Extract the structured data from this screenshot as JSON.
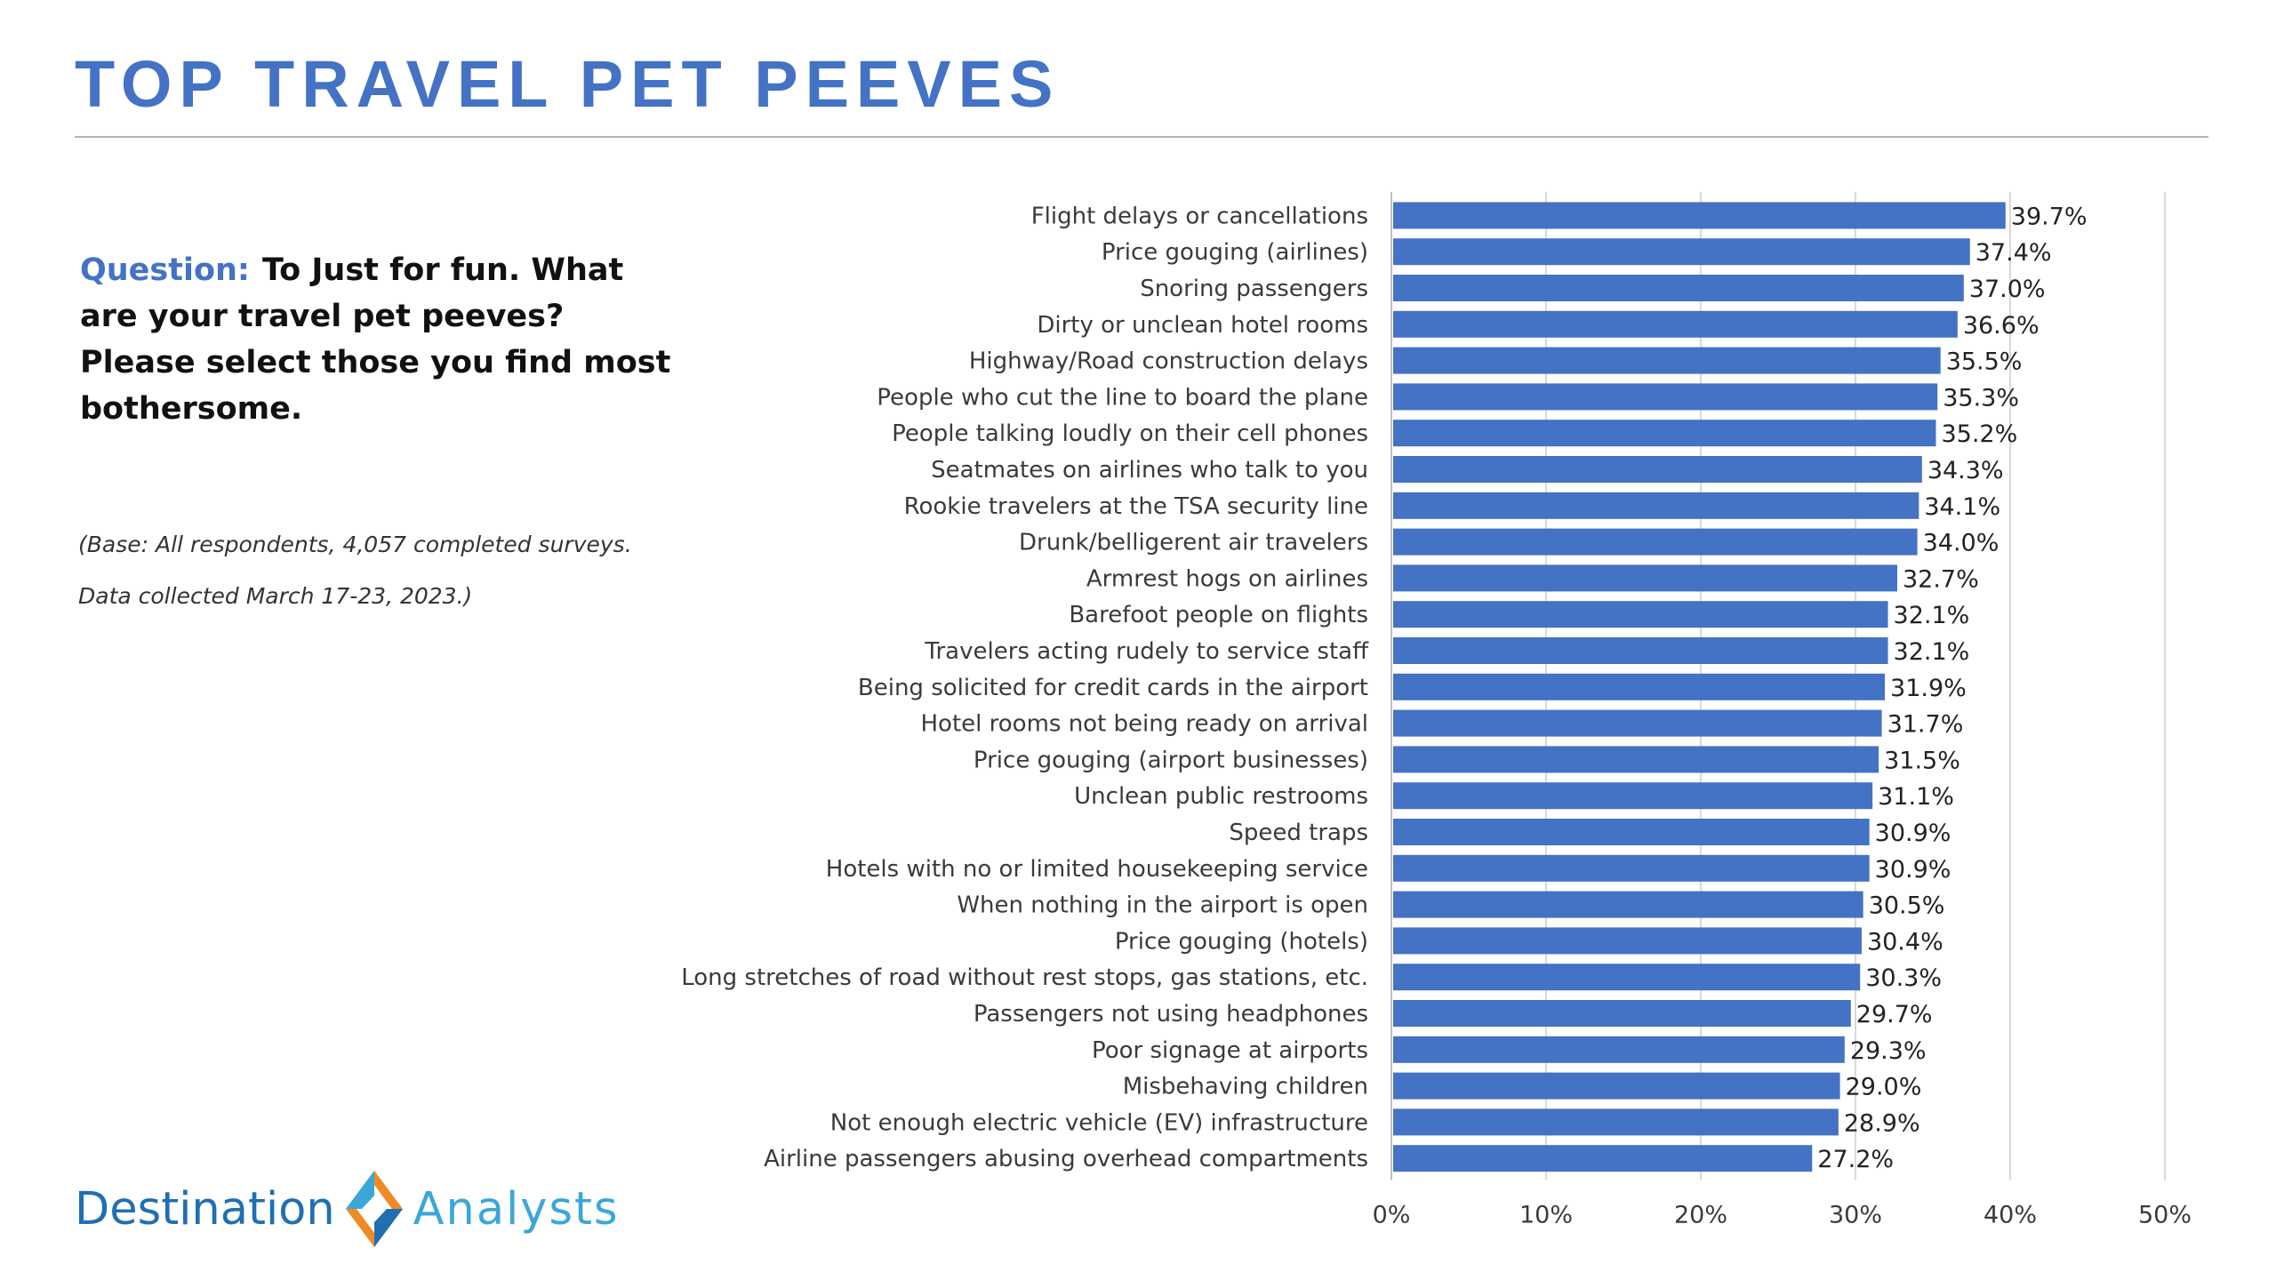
{
  "header": {
    "title": "TOP TRAVEL PET PEEVES"
  },
  "question": {
    "label": "Question:",
    "text": "To Just for fun. What are your travel pet peeves? Please select those you find most bothersome."
  },
  "base_note": {
    "line1": "(Base: All respondents, 4,057 completed surveys.",
    "line2": "Data collected March 17-23, 2023.)"
  },
  "logo": {
    "word1": "Destination",
    "word2": "Analysts",
    "icon": "diamond-arrows-icon"
  },
  "colors": {
    "title": "#4472C4",
    "bar": "#4472C4",
    "gridline": "#d9d9d9"
  },
  "chart_data": {
    "type": "bar",
    "orientation": "horizontal",
    "categories": [
      "Flight delays or cancellations",
      "Price gouging (airlines)",
      "Snoring passengers",
      "Dirty or unclean hotel rooms",
      "Highway/Road construction delays",
      "People who cut the line to board the plane",
      "People talking loudly on their cell phones",
      "Seatmates on airlines who talk to you",
      "Rookie travelers at the TSA security line",
      "Drunk/belligerent air travelers",
      "Armrest hogs on airlines",
      "Barefoot people on flights",
      "Travelers acting rudely to service staff",
      "Being solicited for credit cards in the airport",
      "Hotel rooms not being ready on arrival",
      "Price gouging (airport businesses)",
      "Unclean public restrooms",
      "Speed traps",
      "Hotels with no or limited housekeeping service",
      "When nothing in the airport is open",
      "Price gouging (hotels)",
      "Long stretches of road without rest stops, gas stations, etc.",
      "Passengers not using headphones",
      "Poor signage at airports",
      "Misbehaving children",
      "Not enough electric vehicle (EV) infrastructure",
      "Airline passengers abusing overhead compartments"
    ],
    "values": [
      39.7,
      37.4,
      37.0,
      36.6,
      35.5,
      35.3,
      35.2,
      34.3,
      34.1,
      34.0,
      32.7,
      32.1,
      32.1,
      31.9,
      31.7,
      31.5,
      31.1,
      30.9,
      30.9,
      30.5,
      30.4,
      30.3,
      29.7,
      29.3,
      29.0,
      28.9,
      27.2
    ],
    "value_labels": [
      "39.7%",
      "37.4%",
      "37.0%",
      "36.6%",
      "35.5%",
      "35.3%",
      "35.2%",
      "34.3%",
      "34.1%",
      "34.0%",
      "32.7%",
      "32.1%",
      "32.1%",
      "31.9%",
      "31.7%",
      "31.5%",
      "31.1%",
      "30.9%",
      "30.9%",
      "30.5%",
      "30.4%",
      "30.3%",
      "29.7%",
      "29.3%",
      "29.0%",
      "28.9%",
      "27.2%"
    ],
    "xlim": [
      0,
      50
    ],
    "xticks": [
      0,
      10,
      20,
      30,
      40,
      50
    ],
    "xtick_labels": [
      "0%",
      "10%",
      "20%",
      "30%",
      "40%",
      "50%"
    ],
    "grid": true,
    "legend": "none"
  }
}
